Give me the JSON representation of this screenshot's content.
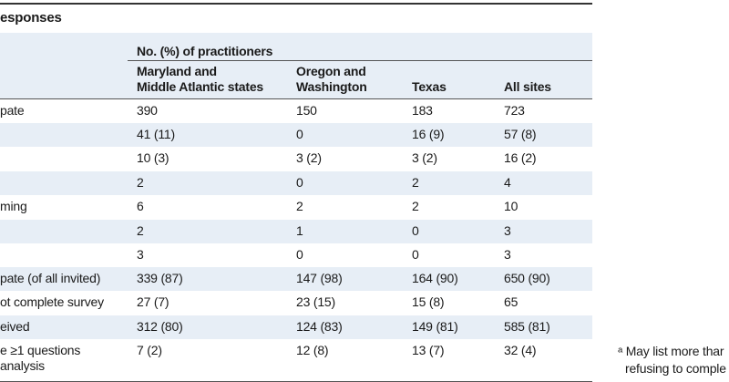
{
  "title": "esponses",
  "table": {
    "group_header": "No. (%) of practitioners",
    "columns": [
      "Maryland and\nMiddle Atlantic states",
      "Oregon and\nWashington",
      "Texas",
      "All sites"
    ],
    "rows": [
      [
        "pate",
        "390",
        "150",
        "183",
        "723"
      ],
      [
        null,
        "41 (11)",
        "0",
        "16 (9)",
        "57 (8)"
      ],
      [
        null,
        "10 (3)",
        "3 (2)",
        "3 (2)",
        "16 (2)"
      ],
      [
        null,
        "2",
        "0",
        "2",
        "4"
      ],
      [
        "ming",
        "6",
        "2",
        "2",
        "10"
      ],
      [
        null,
        "2",
        "1",
        "0",
        "3"
      ],
      [
        null,
        "3",
        "0",
        "0",
        "3"
      ],
      [
        "pate (of all invited)",
        "339 (87)",
        "147 (98)",
        "164 (90)",
        "650 (90)"
      ],
      [
        "ot complete survey",
        "27 (7)",
        "23 (15)",
        "15 (8)",
        "65"
      ],
      [
        "eived",
        "312 (80)",
        "124 (83)",
        "149 (81)",
        "585 (81)"
      ],
      [
        "e ≥1 questions\nanalysis",
        "7 (2)",
        "12 (8)",
        "13 (7)",
        "32 (4)"
      ]
    ]
  },
  "footnote": [
    "ᵃ May list more thar",
    "refusing to comple"
  ]
}
